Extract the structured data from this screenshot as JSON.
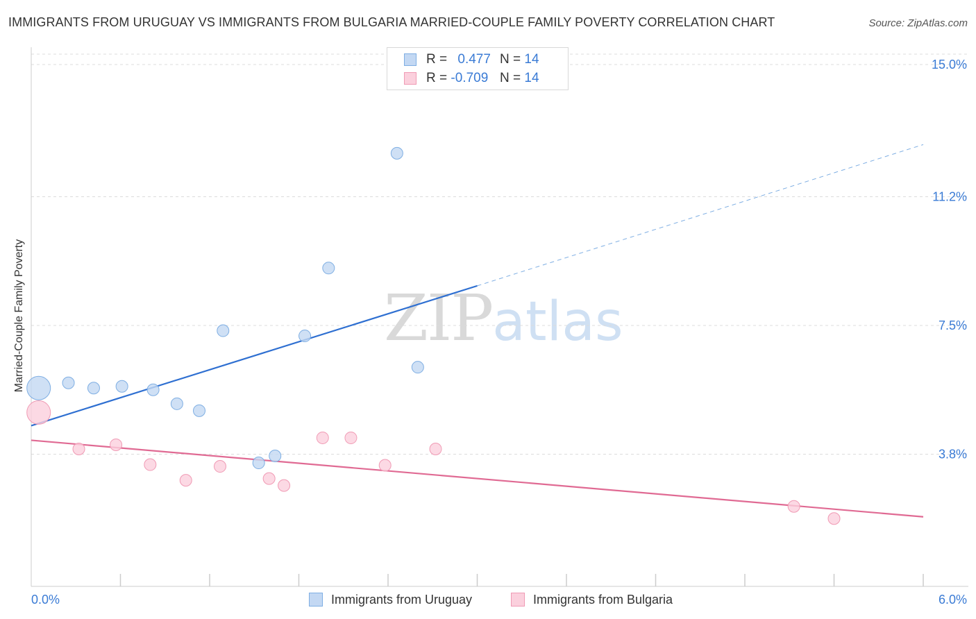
{
  "header": {
    "title": "IMMIGRANTS FROM URUGUAY VS IMMIGRANTS FROM BULGARIA MARRIED-COUPLE FAMILY POVERTY CORRELATION CHART",
    "source": "Source: ZipAtlas.com"
  },
  "watermark": {
    "zip": "ZIP",
    "atlas": "atlas"
  },
  "colors": {
    "uruguay_fill": "#c3d8f3",
    "uruguay_stroke": "#7eaee3",
    "uruguay_line": "#2e6fd1",
    "bulgaria_fill": "#fbd0dd",
    "bulgaria_stroke": "#f09ab4",
    "bulgaria_line": "#e06a93",
    "tick_label": "#3a7bd5",
    "grid": "#dcdcdc"
  },
  "legend": {
    "rows": [
      {
        "series": "uruguay",
        "r_label": "R =",
        "r_value": "0.477",
        "n_label": "N =",
        "n_value": "14"
      },
      {
        "series": "bulgaria",
        "r_label": "R =",
        "r_value": "-0.709",
        "n_label": "N =",
        "n_value": "14"
      }
    ]
  },
  "chart_data": {
    "type": "scatter",
    "title": "IMMIGRANTS FROM URUGUAY VS IMMIGRANTS FROM BULGARIA MARRIED-COUPLE FAMILY POVERTY CORRELATION CHART",
    "xlabel": "",
    "ylabel": "Married-Couple Family Poverty",
    "xlim": [
      0,
      6
    ],
    "ylim": [
      0,
      15.3
    ],
    "x_tick_labels": [
      {
        "value": 0,
        "label": "0.0%"
      },
      {
        "value": 6,
        "label": "6.0%"
      }
    ],
    "y_tick_labels": [
      {
        "value": 3.8,
        "label": "3.8%"
      },
      {
        "value": 7.5,
        "label": "7.5%"
      },
      {
        "value": 11.2,
        "label": "11.2%"
      },
      {
        "value": 15.0,
        "label": "15.0%"
      }
    ],
    "grid_y": [
      3.8,
      7.5,
      11.2,
      15.0
    ],
    "series": [
      {
        "name": "Immigrants from Uruguay",
        "key": "uruguay",
        "points": [
          {
            "x": 0.05,
            "y": 5.7,
            "size": "large"
          },
          {
            "x": 0.25,
            "y": 5.85
          },
          {
            "x": 0.42,
            "y": 5.7
          },
          {
            "x": 0.61,
            "y": 5.75
          },
          {
            "x": 0.82,
            "y": 5.65
          },
          {
            "x": 0.98,
            "y": 5.25
          },
          {
            "x": 1.13,
            "y": 5.05
          },
          {
            "x": 1.29,
            "y": 7.35
          },
          {
            "x": 1.53,
            "y": 3.55
          },
          {
            "x": 1.64,
            "y": 3.75
          },
          {
            "x": 1.84,
            "y": 7.2
          },
          {
            "x": 2.0,
            "y": 9.15
          },
          {
            "x": 2.46,
            "y": 12.45
          },
          {
            "x": 2.6,
            "y": 6.3
          }
        ],
        "trend": {
          "x0": 0.0,
          "y0": 4.62,
          "x_solid_end": 3.0,
          "y_solid_end": 8.64,
          "x1": 6.0,
          "y1": 12.7
        }
      },
      {
        "name": "Immigrants from Bulgaria",
        "key": "bulgaria",
        "points": [
          {
            "x": 0.05,
            "y": 5.0,
            "size": "large"
          },
          {
            "x": 0.32,
            "y": 3.95
          },
          {
            "x": 0.57,
            "y": 4.07
          },
          {
            "x": 0.8,
            "y": 3.5
          },
          {
            "x": 1.04,
            "y": 3.05
          },
          {
            "x": 1.27,
            "y": 3.45
          },
          {
            "x": 1.6,
            "y": 3.1
          },
          {
            "x": 1.7,
            "y": 2.9
          },
          {
            "x": 1.96,
            "y": 4.27
          },
          {
            "x": 2.15,
            "y": 4.27
          },
          {
            "x": 2.38,
            "y": 3.48
          },
          {
            "x": 2.72,
            "y": 3.95
          },
          {
            "x": 5.13,
            "y": 2.3
          },
          {
            "x": 5.4,
            "y": 1.95
          }
        ],
        "trend": {
          "x0": 0.0,
          "y0": 4.2,
          "x1": 6.0,
          "y1": 2.0
        }
      }
    ],
    "legend_position": "top-center",
    "bottom_legend": [
      "Immigrants from Uruguay",
      "Immigrants from Bulgaria"
    ]
  }
}
